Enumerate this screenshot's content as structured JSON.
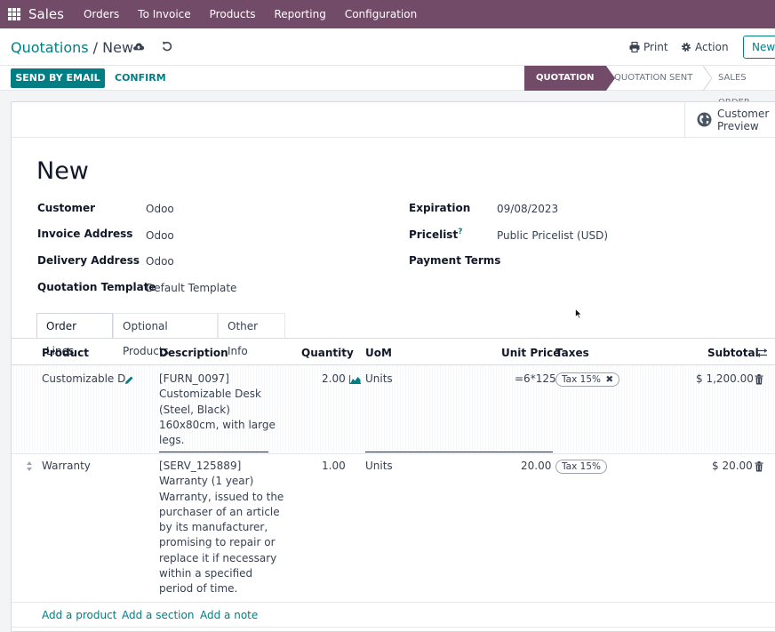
{
  "navbar": {
    "app_name": "Sales",
    "menu": [
      "Orders",
      "To Invoice",
      "Products",
      "Reporting",
      "Configuration"
    ]
  },
  "control": {
    "breadcrumb_parent": "Quotations",
    "breadcrumb_sep": " / ",
    "breadcrumb_current": "New",
    "print_label": "Print",
    "action_label": "Action",
    "new_label": "New"
  },
  "status": {
    "send_email_label": "SEND BY EMAIL",
    "confirm_label": "CONFIRM",
    "stages": [
      "QUOTATION",
      "QUOTATION SENT",
      "SALES ORDER"
    ],
    "active_stage": "QUOTATION"
  },
  "sheet": {
    "preview_line1": "Customer",
    "preview_line2": "Preview",
    "title": "New"
  },
  "fields": {
    "customer_label": "Customer",
    "customer_value": "Odoo",
    "invoice_label": "Invoice Address",
    "invoice_value": "Odoo",
    "delivery_label": "Delivery Address",
    "delivery_value": "Odoo",
    "template_label": "Quotation Template",
    "template_value": "Default Template",
    "expiration_label": "Expiration",
    "expiration_value": "09/08/2023",
    "pricelist_label": "Pricelist",
    "pricelist_help": "?",
    "pricelist_value": "Public Pricelist (USD)",
    "payment_label": "Payment Terms",
    "payment_value": ""
  },
  "tabs": [
    "Order Lines",
    "Optional Products",
    "Other Info"
  ],
  "table": {
    "headers": {
      "product": "Product",
      "description": "Description",
      "quantity": "Quantity",
      "uom": "UoM",
      "unit_price": "Unit Price",
      "taxes": "Taxes",
      "subtotal": "Subtotal"
    },
    "rows": [
      {
        "product": "Customizable D",
        "description": [
          "[FURN_0097]",
          "Customizable Desk",
          "(Steel, Black)",
          "160x80cm, with large",
          "legs."
        ],
        "quantity": "2.00",
        "uom": "Units",
        "unit_price": "=6*125",
        "tax": "Tax 15%",
        "subtotal": "$ 1,200.00"
      },
      {
        "product": "Warranty",
        "description": [
          "[SERV_125889]",
          "Warranty (1 year)",
          "Warranty, issued to the",
          "purchaser of an article",
          "by its manufacturer,",
          "promising to repair or",
          "replace it if necessary",
          "within a specified",
          "period of time."
        ],
        "quantity": "1.00",
        "uom": "Units",
        "unit_price": "20.00",
        "tax": "Tax 15%",
        "subtotal": "$ 20.00"
      }
    ],
    "add_product": "Add a product",
    "add_section": "Add a section",
    "add_note": "Add a note"
  },
  "colors": {
    "brand": "#714b67",
    "accent": "#017e84"
  }
}
